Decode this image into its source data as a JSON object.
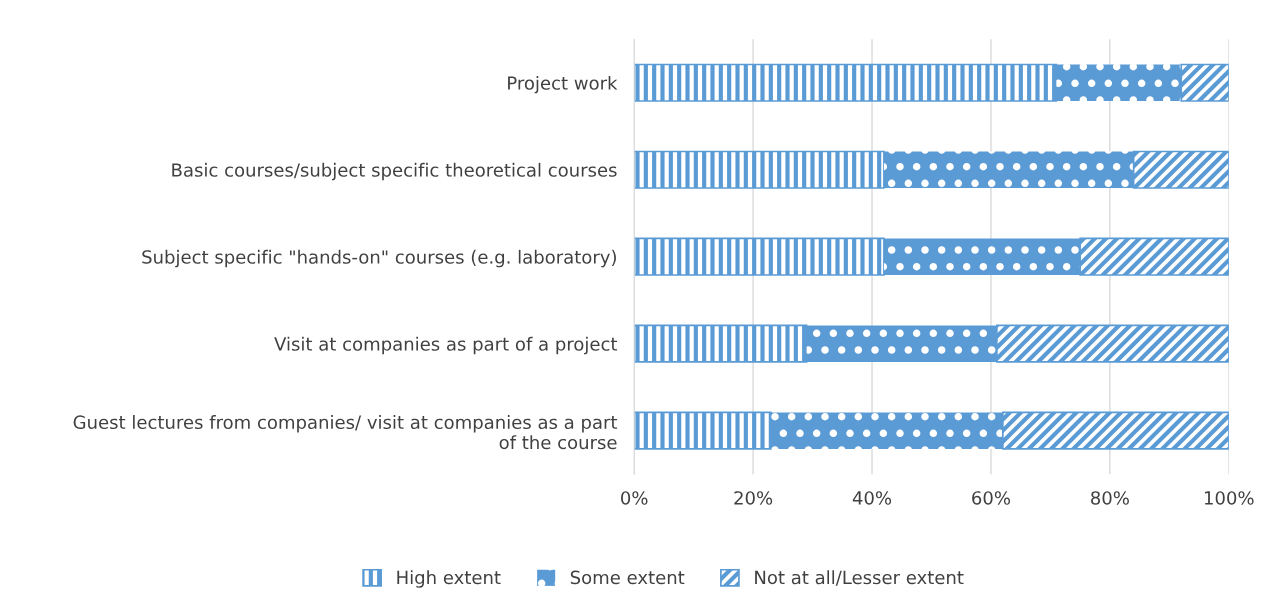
{
  "chart_data": {
    "type": "bar",
    "orientation": "horizontal",
    "stacked": true,
    "categories": [
      "Project work",
      "Basic courses/subject specific theoretical courses",
      "Subject specific \"hands-on\" courses (e.g. laboratory)",
      "Visit at companies as part of a project",
      "Guest lectures from companies/ visit at companies as a part of the course"
    ],
    "series": [
      {
        "name": "High extent",
        "color": "#5b9bd5",
        "values": [
          71,
          42,
          42,
          29,
          23
        ]
      },
      {
        "name": "Some extent",
        "color": "#5b9bd5",
        "values": [
          21,
          42,
          33,
          32,
          39
        ]
      },
      {
        "name": "Not at all/Lesser extent",
        "color": "#5b9bd5",
        "values": [
          8,
          16,
          25,
          39,
          38
        ]
      }
    ],
    "xlim": [
      0,
      100
    ],
    "xticks": [
      {
        "value": 0,
        "label": "0%"
      },
      {
        "value": 20,
        "label": "20%"
      },
      {
        "value": 40,
        "label": "40%"
      },
      {
        "value": 60,
        "label": "60%"
      },
      {
        "value": 80,
        "label": "80%"
      },
      {
        "value": 100,
        "label": "100%"
      }
    ],
    "grid": "x",
    "legend": "bottom"
  }
}
